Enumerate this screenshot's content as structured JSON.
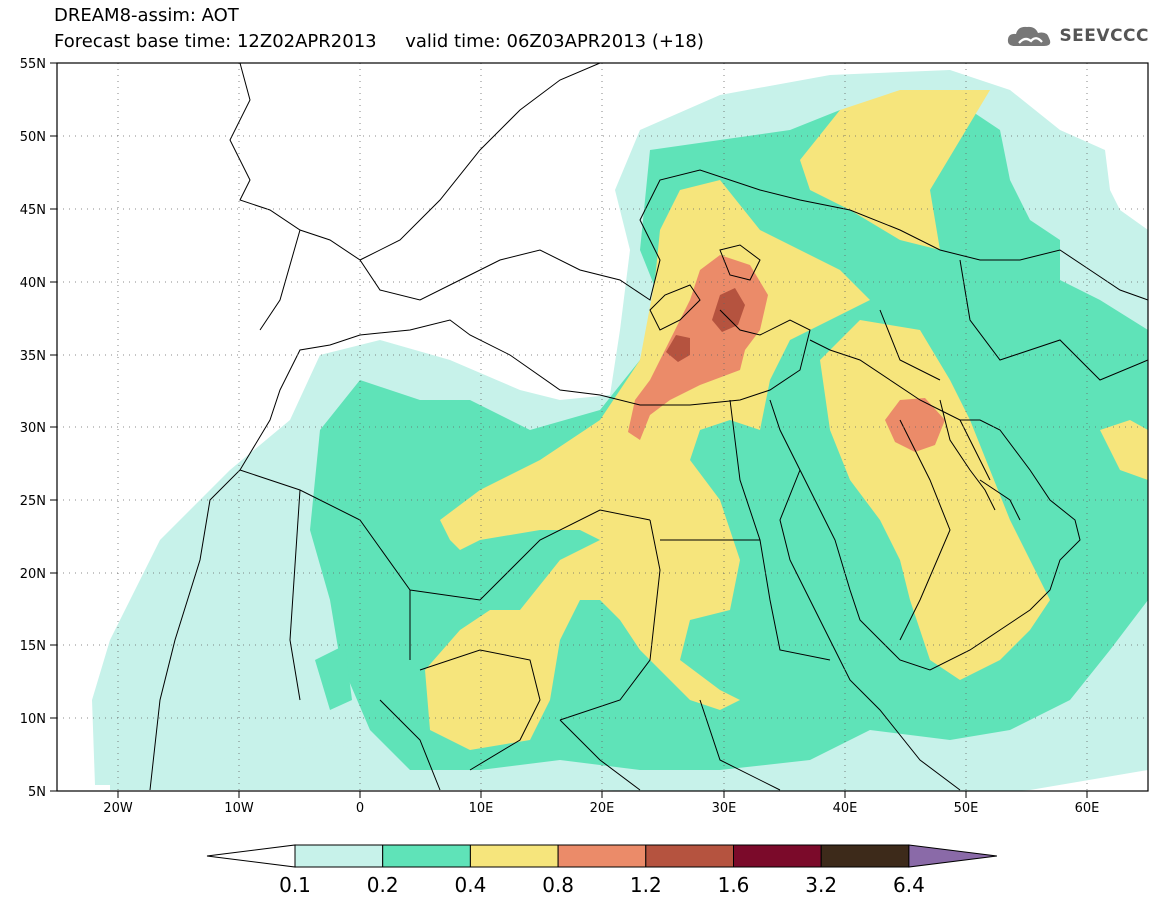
{
  "title": {
    "line1": "DREAM8-assim: AOT",
    "line2": "Forecast base time: 12Z02APR2013     valid time: 06Z03APR2013 (+18)"
  },
  "logo": {
    "text": "SEEVCCC",
    "icon": "cloud-icon"
  },
  "map": {
    "lon_range": [
      -25,
      65
    ],
    "lat_range": [
      5,
      55
    ],
    "lat_labels": [
      "55N",
      "50N",
      "45N",
      "40N",
      "35N",
      "30N",
      "25N",
      "20N",
      "15N",
      "10N",
      "5N"
    ],
    "lon_labels": [
      "20W",
      "10W",
      "0",
      "10E",
      "20E",
      "30E",
      "40E",
      "50E",
      "60E"
    ]
  },
  "colorbar": {
    "labels": [
      "0.1",
      "0.2",
      "0.4",
      "0.8",
      "1.2",
      "1.6",
      "3.2",
      "6.4"
    ],
    "colors": [
      "#ffffff",
      "#c7f2ea",
      "#5fe3b8",
      "#f6e57c",
      "#eb8b69",
      "#b5533f",
      "#7b0a2a",
      "#3d2a1a",
      "#8a6aa8"
    ]
  }
}
